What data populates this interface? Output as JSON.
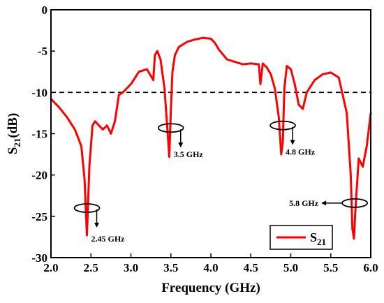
{
  "chart_data": {
    "type": "line",
    "title": "",
    "xlabel": "Frequency (GHz)",
    "ylabel_main": "S",
    "ylabel_sub": "21",
    "ylabel_unit": "(dB)",
    "xlim": [
      2.0,
      6.0
    ],
    "ylim": [
      -30,
      0
    ],
    "xticks": [
      "2.0",
      "2.5",
      "3.0",
      "3.5",
      "4.0",
      "4.5",
      "5.0",
      "5.5",
      "6.0"
    ],
    "yticks": [
      "0",
      "-5",
      "-10",
      "-15",
      "-20",
      "-25",
      "-30"
    ],
    "grid": false,
    "legend_position": "bottom-right",
    "reference_line": {
      "y": -10,
      "style": "dashed",
      "color": "#000000"
    },
    "series": [
      {
        "name_main": "S",
        "name_sub": "21",
        "color": "#ff0000",
        "x": [
          2.0,
          2.1,
          2.2,
          2.3,
          2.38,
          2.42,
          2.45,
          2.48,
          2.52,
          2.55,
          2.6,
          2.65,
          2.7,
          2.75,
          2.8,
          2.85,
          2.9,
          3.0,
          3.1,
          3.2,
          3.28,
          3.3,
          3.33,
          3.37,
          3.42,
          3.46,
          3.48,
          3.5,
          3.52,
          3.55,
          3.6,
          3.7,
          3.8,
          3.9,
          4.0,
          4.05,
          4.1,
          4.2,
          4.3,
          4.4,
          4.5,
          4.6,
          4.62,
          4.65,
          4.7,
          4.75,
          4.8,
          4.85,
          4.88,
          4.9,
          4.92,
          4.95,
          5.0,
          5.05,
          5.1,
          5.15,
          5.2,
          5.3,
          5.4,
          5.5,
          5.6,
          5.7,
          5.75,
          5.77,
          5.79,
          5.81,
          5.85,
          5.9,
          5.95,
          6.0
        ],
        "y": [
          -10.8,
          -11.8,
          -13.0,
          -14.5,
          -16.5,
          -20.5,
          -27.3,
          -19.0,
          -14.0,
          -13.5,
          -14.0,
          -14.5,
          -14.0,
          -15.0,
          -13.5,
          -10.3,
          -10.0,
          -9.0,
          -7.5,
          -7.2,
          -8.5,
          -5.5,
          -5.0,
          -6.0,
          -9.5,
          -15.0,
          -17.8,
          -12.0,
          -7.5,
          -5.5,
          -4.5,
          -3.9,
          -3.6,
          -3.4,
          -3.5,
          -4.0,
          -4.8,
          -6.0,
          -6.3,
          -6.6,
          -6.5,
          -6.6,
          -9.0,
          -6.5,
          -7.0,
          -7.8,
          -9.5,
          -13.0,
          -17.5,
          -16.0,
          -9.5,
          -6.8,
          -7.2,
          -9.0,
          -11.5,
          -12.0,
          -10.0,
          -8.5,
          -7.8,
          -7.6,
          -8.2,
          -12.5,
          -20.0,
          -26.5,
          -27.7,
          -24.0,
          -18.0,
          -19.0,
          -16.5,
          -12.5
        ]
      }
    ],
    "annotations": [
      {
        "label": "2.45 GHz",
        "x": 2.45,
        "y": -24.0,
        "arrow": "down"
      },
      {
        "label": "3.5 GHz",
        "x": 3.5,
        "y": -14.3,
        "arrow": "down"
      },
      {
        "label": "4.8 GHz",
        "x": 4.9,
        "y": -14.0,
        "arrow": "down"
      },
      {
        "label": "5.8 GHz",
        "x": 5.8,
        "y": -23.4,
        "arrow": "left"
      }
    ]
  }
}
